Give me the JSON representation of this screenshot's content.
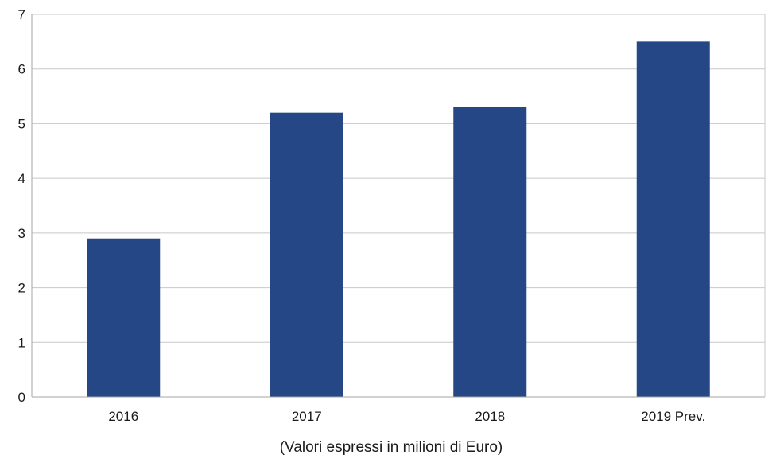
{
  "chart_data": {
    "type": "bar",
    "categories": [
      "2016",
      "2017",
      "2018",
      "2019 Prev."
    ],
    "values": [
      2.9,
      5.2,
      5.3,
      6.5
    ],
    "title": "",
    "xlabel": "(Valori espressi in milioni di Euro)",
    "ylabel": "",
    "ylim": [
      0,
      7
    ],
    "yticks": [
      "0",
      "1",
      "2",
      "3",
      "4",
      "5",
      "6",
      "7"
    ],
    "grid": true,
    "legend": "none",
    "bar_color": "#254785",
    "grid_color": "#c8c8c8",
    "axis_color": "#a6a6a6"
  }
}
